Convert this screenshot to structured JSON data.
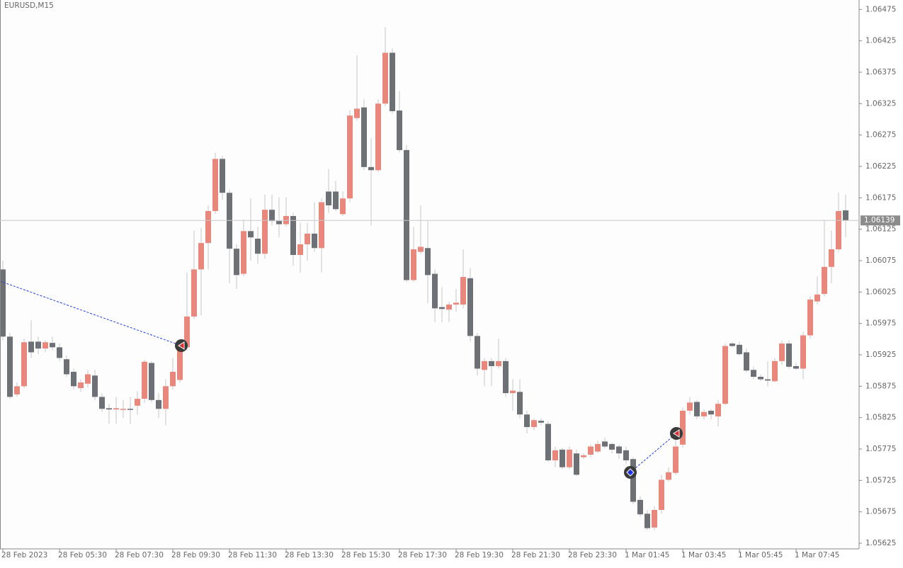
{
  "chart_data": {
    "type": "candlestick",
    "title": "EURUSD,M15",
    "categories": [
      "28 Feb 2023",
      null,
      null,
      null,
      null,
      null,
      null,
      null,
      "28 Feb 05:30",
      null,
      null,
      null,
      null,
      null,
      null,
      null,
      "28 Feb 07:30",
      null,
      null,
      null,
      null,
      null,
      null,
      null,
      "28 Feb 09:30",
      null,
      null,
      null,
      null,
      null,
      null,
      null,
      "28 Feb 11:30",
      null,
      null,
      null,
      null,
      null,
      null,
      null,
      "28 Feb 13:30",
      null,
      null,
      null,
      null,
      null,
      null,
      null,
      "28 Feb 15:30",
      null,
      null,
      null,
      null,
      null,
      null,
      null,
      "28 Feb 17:30",
      null,
      null,
      null,
      null,
      null,
      null,
      null,
      "28 Feb 19:30",
      null,
      null,
      null,
      null,
      null,
      null,
      null,
      "28 Feb 21:30",
      null,
      null,
      null,
      null,
      null,
      null,
      null,
      "28 Feb 23:30",
      null,
      null,
      null,
      null,
      null,
      null,
      null,
      "1 Mar 01:45",
      null,
      null,
      null,
      null,
      null,
      null,
      null,
      "1 Mar 03:45",
      null,
      null,
      null,
      null,
      null,
      null,
      null,
      "1 Mar 05:45",
      null,
      null,
      null,
      null,
      null,
      null,
      null,
      "1 Mar 07:45",
      null,
      null,
      null,
      null,
      null,
      null,
      null
    ],
    "open": [
      1.06061,
      1.05954,
      1.05862,
      1.05875,
      1.05946,
      1.05946,
      1.05935,
      1.05944,
      1.05937,
      1.05918,
      1.05898,
      1.05872,
      1.05879,
      1.05892,
      1.05858,
      1.0584,
      1.05838,
      1.05838,
      1.05839,
      1.05844,
      1.05855,
      1.05912,
      1.05853,
      1.05839,
      1.05875,
      1.05885,
      1.05937,
      1.05986,
      1.06061,
      1.06103,
      1.06154,
      1.06237,
      1.06183,
      1.06094,
      1.06054,
      1.06122,
      1.0611,
      1.06086,
      1.06156,
      1.06138,
      1.06133,
      1.06146,
      1.06084,
      1.06101,
      1.06118,
      1.06095,
      1.06185,
      1.06185,
      1.06149,
      1.06174,
      1.06302,
      1.06319,
      1.06224,
      1.06219,
      1.06325,
      1.06406,
      1.06314,
      1.06251,
      1.06044,
      1.06089,
      1.06095,
      1.06054,
      1.06001,
      1.05997,
      1.06005,
      1.06005,
      1.06047,
      1.05955,
      1.05901,
      1.05915,
      1.05907,
      1.05915,
      1.05864,
      1.05866,
      1.0583,
      1.0581,
      1.0582,
      1.05815,
      1.05757,
      1.05774,
      1.05746,
      1.05768,
      1.05762,
      1.05766,
      1.05771,
      1.05787,
      1.05783,
      1.05779,
      1.05773,
      1.05759,
      1.05694,
      1.05672,
      1.0565,
      1.05678,
      1.05726,
      1.05737,
      1.05782,
      1.05836,
      1.0585,
      1.05827,
      1.05836,
      1.05827,
      1.05847,
      1.05943,
      1.05941,
      1.05929,
      1.05901,
      1.0589,
      1.05886,
      1.05883,
      1.05915,
      1.05943,
      1.05907,
      1.05903,
      1.05956,
      1.0601,
      1.06022,
      1.06065,
      1.06093,
      1.06155
    ],
    "high": [
      1.06075,
      1.0596,
      1.05881,
      1.05951,
      1.0598,
      1.05954,
      1.05948,
      1.05954,
      1.05943,
      1.05924,
      1.05903,
      1.05886,
      1.05901,
      1.05901,
      1.05864,
      1.05847,
      1.05858,
      1.05853,
      1.05858,
      1.05867,
      1.05917,
      1.05915,
      1.05864,
      1.05886,
      1.0592,
      1.05948,
      1.06056,
      1.06123,
      1.06127,
      1.06163,
      1.06247,
      1.06242,
      1.06188,
      1.06101,
      1.0614,
      1.06174,
      1.06129,
      1.0618,
      1.0618,
      1.06176,
      1.06176,
      1.06151,
      1.06135,
      1.06135,
      1.06168,
      1.06174,
      1.06221,
      1.06202,
      1.06185,
      1.06315,
      1.06402,
      1.06332,
      1.0627,
      1.06332,
      1.06447,
      1.06413,
      1.06345,
      1.06259,
      1.06129,
      1.06163,
      1.06138,
      1.06061,
      1.06033,
      1.0601,
      1.0603,
      1.06093,
      1.06063,
      1.0596,
      1.0592,
      1.0592,
      1.05951,
      1.0592,
      1.05886,
      1.05886,
      1.05836,
      1.05824,
      1.05824,
      1.05819,
      1.05779,
      1.05777,
      1.05779,
      1.05774,
      1.05768,
      1.05782,
      1.05788,
      1.05793,
      1.05785,
      1.05782,
      1.05779,
      1.05762,
      1.057,
      1.05678,
      1.05684,
      1.05734,
      1.05746,
      1.05791,
      1.05841,
      1.05858,
      1.05853,
      1.05838,
      1.05838,
      1.05853,
      1.05943,
      1.05946,
      1.05946,
      1.05935,
      1.05906,
      1.05894,
      1.05915,
      1.0592,
      1.05948,
      1.05948,
      1.05912,
      1.05962,
      1.06018,
      1.0605,
      1.0614,
      1.06123,
      1.06183,
      1.0618
    ],
    "low": [
      1.05948,
      1.05855,
      1.05858,
      1.05872,
      1.0592,
      1.05926,
      1.05929,
      1.05932,
      1.05915,
      1.0589,
      1.0587,
      1.05866,
      1.05873,
      1.05853,
      1.05834,
      1.05815,
      1.05815,
      1.05824,
      1.05815,
      1.0583,
      1.05849,
      1.05849,
      1.05824,
      1.05813,
      1.0587,
      1.05881,
      1.05932,
      1.05982,
      1.05988,
      1.06061,
      1.06149,
      1.06172,
      1.06039,
      1.0603,
      1.0605,
      1.06075,
      1.0607,
      1.06078,
      1.06131,
      1.06112,
      1.06129,
      1.06067,
      1.06056,
      1.06075,
      1.06089,
      1.06056,
      1.06151,
      1.06154,
      1.06146,
      1.06168,
      1.06298,
      1.06219,
      1.06131,
      1.06216,
      1.06321,
      1.06309,
      1.06247,
      1.06041,
      1.06041,
      1.06086,
      1.06007,
      1.05977,
      1.05977,
      1.05977,
      1.05994,
      1.05999,
      1.05946,
      1.05892,
      1.05875,
      1.05875,
      1.05903,
      1.05858,
      1.05836,
      1.05824,
      1.058,
      1.05805,
      1.05813,
      1.05755,
      1.05746,
      1.05743,
      1.05743,
      1.05732,
      1.05759,
      1.05762,
      1.05768,
      1.05776,
      1.05768,
      1.05759,
      1.05751,
      1.05687,
      1.05667,
      1.05646,
      1.05646,
      1.05672,
      1.05723,
      1.05734,
      1.05777,
      1.0583,
      1.05822,
      1.05822,
      1.05822,
      1.05811,
      1.05845,
      1.05937,
      1.05924,
      1.05897,
      1.05886,
      1.05883,
      1.05875,
      1.05881,
      1.05909,
      1.05903,
      1.05901,
      1.05886,
      1.05951,
      1.06005,
      1.06018,
      1.06039,
      1.06089,
      1.06112
    ],
    "close": [
      1.05954,
      1.05858,
      1.05875,
      1.05945,
      1.05929,
      1.05935,
      1.05945,
      1.05937,
      1.0592,
      1.05894,
      1.05875,
      1.05881,
      1.05894,
      1.05858,
      1.05839,
      1.05838,
      1.0584,
      1.05839,
      1.05838,
      1.05855,
      1.05914,
      1.05853,
      1.05839,
      1.05875,
      1.05898,
      1.05939,
      1.05986,
      1.06061,
      1.06103,
      1.06154,
      1.06237,
      1.06183,
      1.06094,
      1.06052,
      1.06122,
      1.06112,
      1.06086,
      1.06156,
      1.06138,
      1.06133,
      1.06146,
      1.06084,
      1.06101,
      1.06118,
      1.06095,
      1.06168,
      1.06163,
      1.06157,
      1.06174,
      1.06306,
      1.06317,
      1.06224,
      1.06219,
      1.06325,
      1.06406,
      1.06313,
      1.06251,
      1.06044,
      1.06093,
      1.06097,
      1.06052,
      1.05999,
      1.05998,
      1.06005,
      1.06008,
      1.06049,
      1.05955,
      1.05903,
      1.05915,
      1.05907,
      1.05915,
      1.05864,
      1.05868,
      1.0583,
      1.0581,
      1.05821,
      1.05817,
      1.05757,
      1.05773,
      1.05746,
      1.05774,
      1.05734,
      1.05765,
      1.05779,
      1.05783,
      1.05779,
      1.05774,
      1.05768,
      1.05757,
      1.05691,
      1.05671,
      1.05649,
      1.05678,
      1.05726,
      1.05738,
      1.05779,
      1.05836,
      1.05849,
      1.05827,
      1.05834,
      1.0583,
      1.05847,
      1.05939,
      1.05939,
      1.05926,
      1.059,
      1.0589,
      1.05886,
      1.05884,
      1.05915,
      1.05943,
      1.05906,
      1.05903,
      1.05956,
      1.06013,
      1.06021,
      1.06065,
      1.06093,
      1.06154,
      1.06139
    ],
    "up_color": "#e8887c",
    "down_color": "#6d7075",
    "wick_color": "#c8c8c8",
    "ylim": [
      1.05616,
      1.0649
    ],
    "yticks": [
      1.05625,
      1.05675,
      1.05725,
      1.05775,
      1.05825,
      1.05875,
      1.05925,
      1.05975,
      1.06025,
      1.06075,
      1.06125,
      1.06175,
      1.06225,
      1.06275,
      1.06325,
      1.06375,
      1.06425,
      1.06475
    ],
    "current_price": 1.06139
  }
}
